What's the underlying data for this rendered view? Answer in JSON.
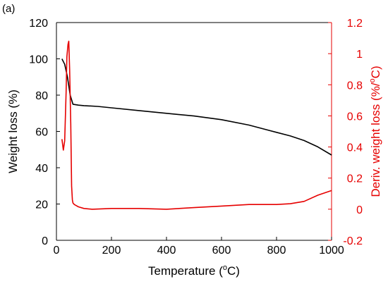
{
  "panel_label": "(a)",
  "chart_data": {
    "type": "line",
    "title": "",
    "xlabel": {
      "main": "Temperature (",
      "sup": "o",
      "unit": "C)"
    },
    "ylabel_left": "Weight loss (%)",
    "ylabel_right": {
      "main": "Deriv. weight loss (%/",
      "sup": "o",
      "unit": "C)"
    },
    "xlim": [
      0,
      1000
    ],
    "ylim_left": [
      0,
      120
    ],
    "ylim_right": [
      -0.2,
      1.2
    ],
    "x_ticks": [
      "0",
      "200",
      "400",
      "600",
      "800",
      "1000"
    ],
    "y_ticks_left": [
      "0",
      "20",
      "40",
      "60",
      "80",
      "100",
      "120"
    ],
    "y_ticks_right": [
      "-0.2",
      "0",
      "0.2",
      "0.4",
      "0.6",
      "0.8",
      "1",
      "1.2"
    ],
    "grid": false,
    "legend": "none",
    "series": [
      {
        "axis": "left",
        "color": "#000000",
        "x": [
          20,
          30,
          40,
          50,
          60,
          80,
          100,
          150,
          200,
          300,
          400,
          500,
          600,
          700,
          800,
          850,
          900,
          950,
          1000
        ],
        "y": [
          100,
          97,
          90,
          80,
          75,
          74.5,
          74.2,
          73.8,
          73.0,
          71.5,
          70.0,
          68.5,
          66.5,
          63.5,
          59.5,
          57.5,
          55.0,
          51.5,
          47.0
        ]
      },
      {
        "axis": "right",
        "color": "#e60000",
        "x": [
          20,
          25,
          30,
          35,
          38,
          42,
          45,
          48,
          52,
          55,
          58,
          60,
          65,
          70,
          80,
          100,
          130,
          200,
          300,
          400,
          500,
          600,
          700,
          800,
          850,
          900,
          950,
          1000
        ],
        "y": [
          0.45,
          0.38,
          0.44,
          0.75,
          0.98,
          1.06,
          1.08,
          0.9,
          0.55,
          0.15,
          0.06,
          0.04,
          0.03,
          0.025,
          0.015,
          0.005,
          0.0,
          0.005,
          0.005,
          0.0,
          0.01,
          0.02,
          0.03,
          0.03,
          0.035,
          0.05,
          0.09,
          0.12
        ]
      }
    ]
  }
}
